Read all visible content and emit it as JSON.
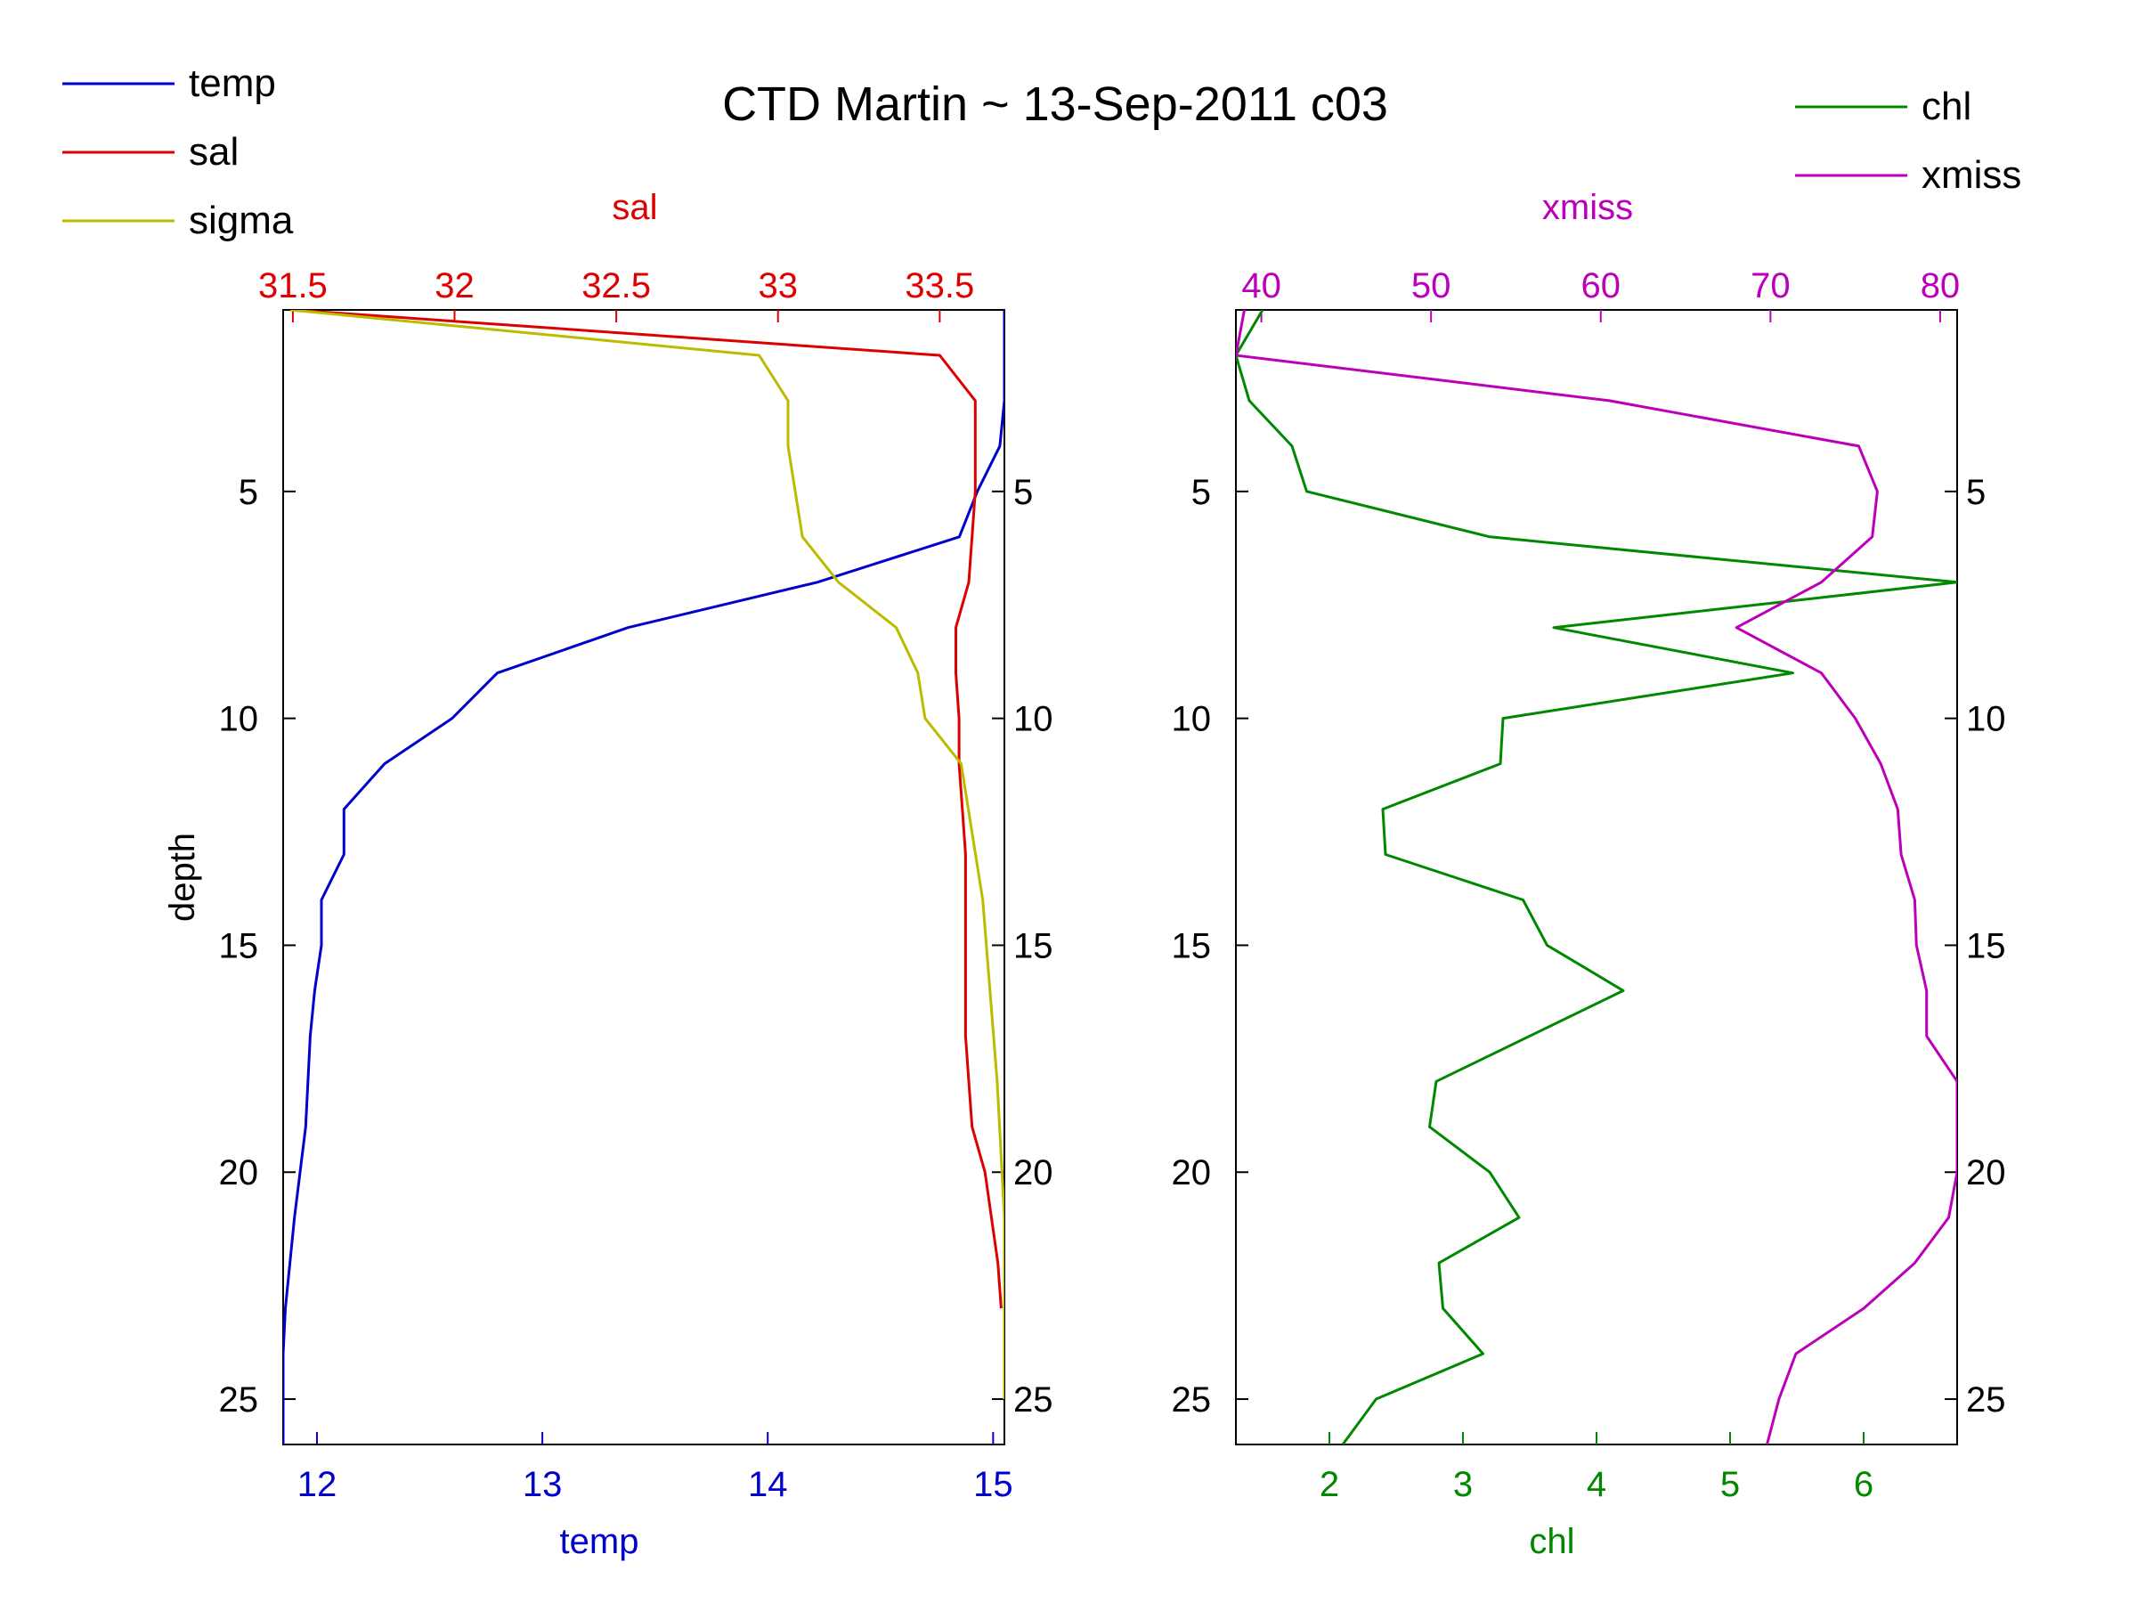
{
  "title": "CTD Martin ~ 13-Sep-2011 c03",
  "colors": {
    "temp": "#0000cc",
    "sal": "#dd0000",
    "sigma": "#bbbb00",
    "chl": "#008800",
    "xmiss": "#bb00bb",
    "axis": "#000000"
  },
  "legend_left": [
    {
      "label": "temp",
      "color_key": "temp"
    },
    {
      "label": "sal",
      "color_key": "sal"
    },
    {
      "label": "sigma",
      "color_key": "sigma"
    }
  ],
  "legend_right": [
    {
      "label": "chl",
      "color_key": "chl"
    },
    {
      "label": "xmiss",
      "color_key": "xmiss"
    }
  ],
  "chart_data": [
    {
      "type": "line",
      "panel": "left",
      "ylabel": "depth",
      "ylim": [
        26,
        1
      ],
      "y_reversed": true,
      "yticks": [
        5,
        10,
        15,
        20,
        25
      ],
      "bottom_axis": {
        "label": "temp",
        "lim": [
          11.85,
          15.05
        ],
        "ticks": [
          12,
          13,
          14,
          15
        ],
        "color_key": "temp"
      },
      "top_axis": {
        "label": "sal",
        "lim": [
          31.47,
          33.7
        ],
        "ticks": [
          31.5,
          32,
          32.5,
          33,
          33.5
        ],
        "color_key": "sal"
      },
      "series": [
        {
          "name": "temp",
          "axis": "bottom",
          "color_key": "temp",
          "x": [
            15.05,
            15.05,
            15.05,
            15.03,
            14.93,
            14.85,
            14.22,
            13.38,
            12.8,
            12.6,
            12.3,
            12.12,
            12.12,
            12.02,
            12.02,
            11.99,
            11.97,
            11.95,
            11.9,
            11.88,
            11.86,
            11.85,
            11.85,
            11.85
          ],
          "y": [
            1,
            2,
            3,
            4,
            5,
            6,
            7,
            8,
            9,
            10,
            11,
            12,
            13,
            14,
            15,
            16,
            17,
            19,
            21,
            22,
            23,
            24,
            25,
            26
          ]
        },
        {
          "name": "sal",
          "axis": "top",
          "color_key": "sal",
          "x": [
            31.5,
            33.5,
            33.61,
            33.61,
            33.61,
            33.6,
            33.59,
            33.55,
            33.55,
            33.56,
            33.56,
            33.57,
            33.58,
            33.58,
            33.58,
            33.58,
            33.59,
            33.6,
            33.64,
            33.68,
            33.69
          ],
          "y": [
            1,
            2,
            3,
            4,
            5,
            6,
            7,
            8,
            9,
            10,
            11,
            12,
            13,
            15,
            16,
            17,
            18,
            19,
            20,
            22,
            23
          ]
        },
        {
          "name": "sigma",
          "axis": "none",
          "color_key": "sigma",
          "xfrac": [
            0.01,
            0.66,
            0.7,
            0.7,
            0.72,
            0.77,
            0.85,
            0.88,
            0.89,
            0.94,
            0.95,
            0.97,
            0.98,
            0.99,
            1.0,
            1.0,
            1.0
          ],
          "y": [
            1,
            2,
            3,
            4,
            6,
            7,
            8,
            9,
            10,
            11,
            12,
            14,
            16,
            18,
            21,
            23,
            25
          ]
        }
      ]
    },
    {
      "type": "line",
      "panel": "right",
      "ylim": [
        26,
        1
      ],
      "y_reversed": true,
      "yticks": [
        5,
        10,
        15,
        20,
        25
      ],
      "bottom_axis": {
        "label": "chl",
        "lim": [
          1.3,
          6.7
        ],
        "ticks": [
          2,
          3,
          4,
          5,
          6
        ],
        "color_key": "chl"
      },
      "top_axis": {
        "label": "xmiss",
        "lim": [
          38.5,
          81
        ],
        "ticks": [
          40,
          50,
          60,
          70,
          80
        ],
        "color_key": "xmiss"
      },
      "series": [
        {
          "name": "chl",
          "axis": "bottom",
          "color_key": "chl",
          "x": [
            1.5,
            1.3,
            1.4,
            1.72,
            1.83,
            3.2,
            6.7,
            3.68,
            5.47,
            3.3,
            3.28,
            2.4,
            2.42,
            3.45,
            3.63,
            4.2,
            2.8,
            2.75,
            3.2,
            3.42,
            2.82,
            2.85,
            3.15,
            2.35,
            2.1
          ],
          "y": [
            1,
            2,
            3,
            4,
            5,
            6,
            7,
            8,
            9,
            10,
            11,
            12,
            13,
            14,
            15,
            16,
            18,
            19,
            20,
            21,
            22,
            23,
            24,
            25,
            26
          ]
        },
        {
          "name": "xmiss",
          "axis": "top",
          "color_key": "xmiss",
          "x": [
            39.0,
            38.5,
            60.5,
            75.2,
            76.3,
            76.0,
            73.0,
            68.0,
            73.0,
            75.0,
            76.5,
            77.5,
            77.7,
            78.5,
            78.6,
            79.2,
            79.2,
            81.0,
            81.0,
            81.0,
            80.5,
            78.5,
            75.5,
            71.5,
            70.5,
            69.8
          ],
          "y": [
            1,
            2,
            3,
            4,
            5,
            6,
            7,
            8,
            9,
            10,
            11,
            12,
            13,
            14,
            15,
            16,
            17,
            18,
            19,
            20,
            21,
            22,
            23,
            24,
            25,
            26
          ]
        }
      ]
    }
  ]
}
